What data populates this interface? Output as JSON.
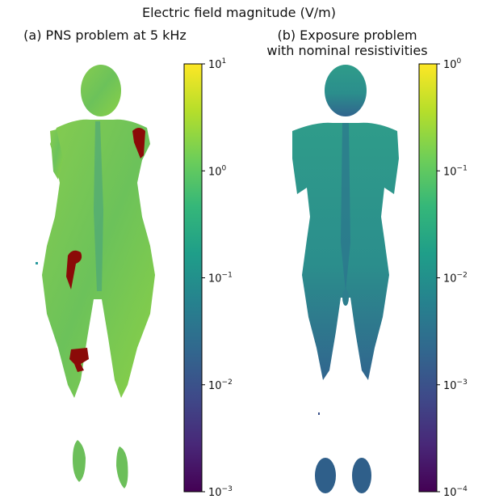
{
  "figure": {
    "suptitle": "Electric field magnitude (V/m)"
  },
  "panels": [
    {
      "id": "a",
      "title": "(a) PNS problem at 5 kHz",
      "colorbar": {
        "scale": "log",
        "colormap": "viridis",
        "range": [
          0.001,
          10
        ],
        "ticks": [
          {
            "value": 10,
            "base": "10",
            "exp": "1"
          },
          {
            "value": 1,
            "base": "10",
            "exp": "0"
          },
          {
            "value": 0.1,
            "base": "10",
            "exp": "−1"
          },
          {
            "value": 0.01,
            "base": "10",
            "exp": "−2"
          },
          {
            "value": 0.001,
            "base": "10",
            "exp": "−3"
          }
        ]
      },
      "highlight_color": "#8b0a08",
      "body_color": "#7ac653"
    },
    {
      "id": "b",
      "title_lines": [
        "(b) Exposure problem",
        "with nominal resistivities"
      ],
      "colorbar": {
        "scale": "log",
        "colormap": "viridis",
        "range": [
          0.0001,
          1
        ],
        "ticks": [
          {
            "value": 1,
            "base": "10",
            "exp": "0"
          },
          {
            "value": 0.1,
            "base": "10",
            "exp": "−1"
          },
          {
            "value": 0.01,
            "base": "10",
            "exp": "−2"
          },
          {
            "value": 0.001,
            "base": "10",
            "exp": "−3"
          },
          {
            "value": 0.0001,
            "base": "10",
            "exp": "−4"
          }
        ]
      },
      "body_color": "#2e9a8c"
    }
  ],
  "chart_data": [
    {
      "type": "heatmap",
      "title": "(a) PNS problem at 5 kHz",
      "colorbar_scale": "log",
      "vmin": 0.001,
      "vmax": 10
    },
    {
      "type": "heatmap",
      "title": "(b) Exposure problem with nominal resistivities",
      "colorbar_scale": "log",
      "vmin": 0.0001,
      "vmax": 1
    }
  ]
}
